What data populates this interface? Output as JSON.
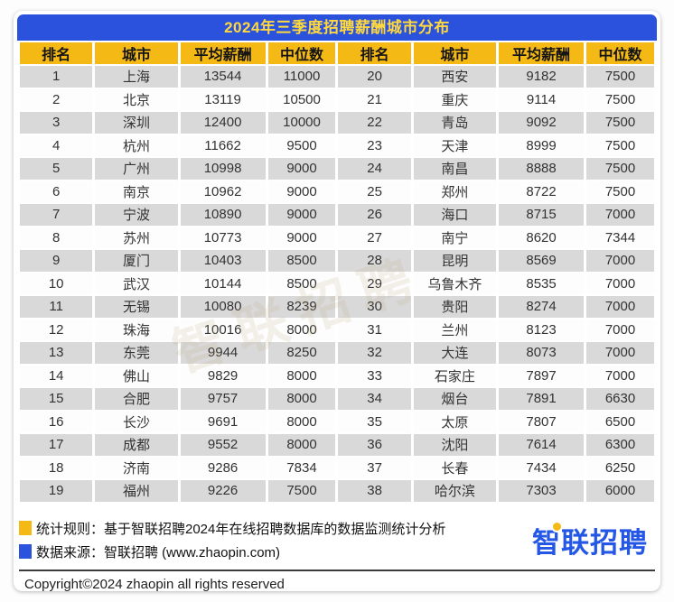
{
  "colors": {
    "title_bar": "#2B52DC",
    "title_text": "#FFD83D",
    "header_bg": "#F5B915",
    "header_text": "#141414",
    "row_stripe": "#D9D9D9",
    "logo_blue": "#2457E5",
    "logo_dot": "#F5B915",
    "legend_yellow": "#F5B915",
    "legend_blue": "#2B52DC"
  },
  "chart_data": {
    "type": "table",
    "title": "2024年三季度招聘薪酬城市分布",
    "columns": [
      "排名",
      "城市",
      "平均薪酬",
      "中位数",
      "排名",
      "城市",
      "平均薪酬",
      "中位数"
    ],
    "rows": [
      [
        "1",
        "上海",
        "13544",
        "11000",
        "20",
        "西安",
        "9182",
        "7500"
      ],
      [
        "2",
        "北京",
        "13119",
        "10500",
        "21",
        "重庆",
        "9114",
        "7500"
      ],
      [
        "3",
        "深圳",
        "12400",
        "10000",
        "22",
        "青岛",
        "9092",
        "7500"
      ],
      [
        "4",
        "杭州",
        "11662",
        "9500",
        "23",
        "天津",
        "8999",
        "7500"
      ],
      [
        "5",
        "广州",
        "10998",
        "9000",
        "24",
        "南昌",
        "8888",
        "7500"
      ],
      [
        "6",
        "南京",
        "10962",
        "9000",
        "25",
        "郑州",
        "8722",
        "7500"
      ],
      [
        "7",
        "宁波",
        "10890",
        "9000",
        "26",
        "海口",
        "8715",
        "7000"
      ],
      [
        "8",
        "苏州",
        "10773",
        "9000",
        "27",
        "南宁",
        "8620",
        "7344"
      ],
      [
        "9",
        "厦门",
        "10403",
        "8500",
        "28",
        "昆明",
        "8569",
        "7000"
      ],
      [
        "10",
        "武汉",
        "10144",
        "8500",
        "29",
        "乌鲁木齐",
        "8535",
        "7000"
      ],
      [
        "11",
        "无锡",
        "10080",
        "8239",
        "30",
        "贵阳",
        "8274",
        "7000"
      ],
      [
        "12",
        "珠海",
        "10016",
        "8000",
        "31",
        "兰州",
        "8123",
        "7000"
      ],
      [
        "13",
        "东莞",
        "9944",
        "8250",
        "32",
        "大连",
        "8073",
        "7000"
      ],
      [
        "14",
        "佛山",
        "9829",
        "8000",
        "33",
        "石家庄",
        "7897",
        "7000"
      ],
      [
        "15",
        "合肥",
        "9757",
        "8000",
        "34",
        "烟台",
        "7891",
        "6630"
      ],
      [
        "16",
        "长沙",
        "9691",
        "8000",
        "35",
        "太原",
        "7807",
        "6500"
      ],
      [
        "17",
        "成都",
        "9552",
        "8000",
        "36",
        "沈阳",
        "7614",
        "6300"
      ],
      [
        "18",
        "济南",
        "9286",
        "7834",
        "37",
        "长春",
        "7434",
        "6250"
      ],
      [
        "19",
        "福州",
        "9226",
        "7500",
        "38",
        "哈尔滨",
        "7303",
        "6000"
      ]
    ]
  },
  "watermark": "智联招聘",
  "footer": {
    "legend": [
      {
        "color": "#F5B915",
        "text": "统计规则：基于智联招聘2024年在线招聘数据库的数据监测统计分析"
      },
      {
        "color": "#2B52DC",
        "text": "数据来源：智联招聘 (www.zhaopin.com)"
      }
    ],
    "logo_text": "智联招聘",
    "copyright": "Copyright©2024 zhaopin all rights reserved"
  }
}
